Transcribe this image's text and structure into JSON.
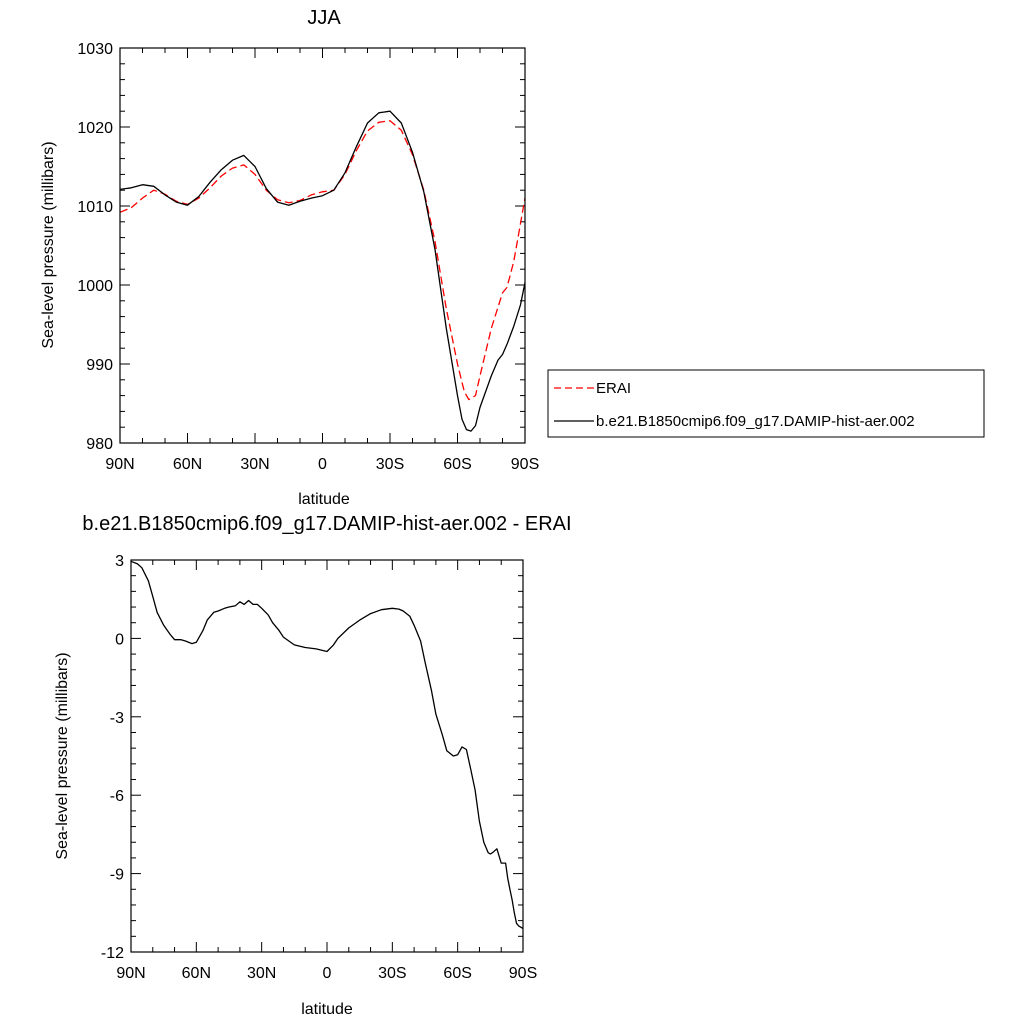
{
  "chart_data": [
    {
      "type": "line",
      "title": "JJA",
      "xlabel": "latitude",
      "ylabel": "Sea-level pressure (millibars)",
      "x_ticks": [
        "90N",
        "60N",
        "30N",
        "0",
        "30S",
        "60S",
        "90S"
      ],
      "x_tick_values": [
        90,
        60,
        30,
        0,
        -30,
        -60,
        -90
      ],
      "xlim": [
        90,
        -90
      ],
      "ylim": [
        980,
        1030
      ],
      "y_ticks": [
        "980",
        "990",
        "1000",
        "1010",
        "1020",
        "1030"
      ],
      "y_tick_values": [
        980,
        990,
        1000,
        1010,
        1020,
        1030
      ],
      "grid": false,
      "legend_position": "right",
      "series": [
        {
          "name": "ERAI",
          "color": "#ff0000",
          "dash": "dashed",
          "x": [
            90,
            85,
            80,
            75,
            70,
            65,
            60,
            55,
            50,
            45,
            40,
            35,
            30,
            25,
            20,
            15,
            10,
            5,
            0,
            -5,
            -10,
            -15,
            -20,
            -25,
            -30,
            -35,
            -40,
            -45,
            -50,
            -55,
            -60,
            -63,
            -65,
            -68,
            -70,
            -75,
            -80,
            -82,
            -85,
            -90
          ],
          "y": [
            1009.2,
            1009.8,
            1011.0,
            1012.0,
            1011.5,
            1010.6,
            1010.2,
            1011.0,
            1012.3,
            1013.8,
            1014.8,
            1015.2,
            1014.0,
            1012.0,
            1010.8,
            1010.4,
            1010.7,
            1011.4,
            1011.8,
            1012.0,
            1014.0,
            1017.0,
            1019.5,
            1020.6,
            1020.8,
            1019.6,
            1016.5,
            1012.0,
            1005.5,
            997.0,
            990.0,
            986.5,
            985.5,
            986.0,
            988.5,
            994.5,
            999.0,
            999.7,
            1003.0,
            1011.0
          ]
        },
        {
          "name": "b.e21.B1850cmip6.f09_g17.DAMIP-hist-aer.002",
          "color": "#000000",
          "dash": "solid",
          "x": [
            90,
            85,
            80,
            75,
            70,
            65,
            60,
            55,
            50,
            45,
            40,
            35,
            30,
            25,
            20,
            15,
            10,
            5,
            0,
            -5,
            -10,
            -15,
            -20,
            -25,
            -30,
            -35,
            -40,
            -45,
            -50,
            -55,
            -60,
            -62,
            -64,
            -66,
            -68,
            -70,
            -75,
            -78,
            -80,
            -82,
            -85,
            -88,
            -90
          ],
          "y": [
            1012.1,
            1012.3,
            1012.7,
            1012.5,
            1011.4,
            1010.5,
            1010.1,
            1011.2,
            1013.0,
            1014.6,
            1015.8,
            1016.4,
            1015.0,
            1012.2,
            1010.5,
            1010.1,
            1010.6,
            1011.0,
            1011.3,
            1012.0,
            1014.2,
            1017.5,
            1020.5,
            1021.8,
            1022.0,
            1020.5,
            1016.8,
            1011.8,
            1004.5,
            994.5,
            986.0,
            983.0,
            981.7,
            981.5,
            982.2,
            984.5,
            988.5,
            990.5,
            991.2,
            992.5,
            994.8,
            997.5,
            1000.3
          ]
        }
      ]
    },
    {
      "type": "line",
      "title": "b.e21.B1850cmip6.f09_g17.DAMIP-hist-aer.002 - ERAI",
      "xlabel": "latitude",
      "ylabel": "Sea-level pressure (millibars)",
      "x_ticks": [
        "90N",
        "60N",
        "30N",
        "0",
        "30S",
        "60S",
        "90S"
      ],
      "x_tick_values": [
        90,
        60,
        30,
        0,
        -30,
        -60,
        -90
      ],
      "xlim": [
        90,
        -90
      ],
      "ylim": [
        -12,
        3
      ],
      "y_ticks": [
        "-12",
        "-9",
        "-6",
        "-3",
        "0",
        "3"
      ],
      "y_tick_values": [
        -12,
        -9,
        -6,
        -3,
        0,
        3
      ],
      "grid": false,
      "series": [
        {
          "color": "#000000",
          "dash": "solid",
          "x": [
            90,
            87,
            85,
            82,
            80,
            78,
            75,
            72,
            70,
            67,
            65,
            62,
            60,
            57,
            55,
            52,
            50,
            47,
            45,
            42,
            40,
            38,
            36,
            34,
            32,
            30,
            27,
            25,
            22,
            20,
            15,
            10,
            5,
            0,
            -3,
            -5,
            -10,
            -15,
            -20,
            -25,
            -30,
            -33,
            -35,
            -38,
            -40,
            -43,
            -45,
            -48,
            -50,
            -53,
            -55,
            -58,
            -60,
            -62,
            -64,
            -66,
            -68,
            -70,
            -72,
            -74,
            -75,
            -76,
            -78,
            -80,
            -81,
            -82,
            -83,
            -84,
            -85,
            -86,
            -87,
            -88,
            -89,
            -90
          ],
          "y": [
            2.95,
            2.85,
            2.7,
            2.2,
            1.6,
            1.0,
            0.5,
            0.15,
            -0.05,
            -0.05,
            -0.1,
            -0.2,
            -0.15,
            0.3,
            0.7,
            1.0,
            1.05,
            1.15,
            1.2,
            1.25,
            1.4,
            1.3,
            1.45,
            1.3,
            1.3,
            1.15,
            0.9,
            0.6,
            0.3,
            0.05,
            -0.25,
            -0.35,
            -0.4,
            -0.5,
            -0.25,
            0.0,
            0.4,
            0.7,
            0.95,
            1.1,
            1.15,
            1.12,
            1.05,
            0.85,
            0.5,
            -0.1,
            -0.9,
            -2.0,
            -2.9,
            -3.7,
            -4.3,
            -4.5,
            -4.45,
            -4.15,
            -4.25,
            -5.0,
            -5.8,
            -7.0,
            -7.8,
            -8.2,
            -8.25,
            -8.2,
            -8.05,
            -8.6,
            -8.6,
            -8.6,
            -9.2,
            -9.6,
            -10.0,
            -10.5,
            -10.9,
            -11.0,
            -11.05,
            -11.1
          ]
        }
      ]
    }
  ]
}
